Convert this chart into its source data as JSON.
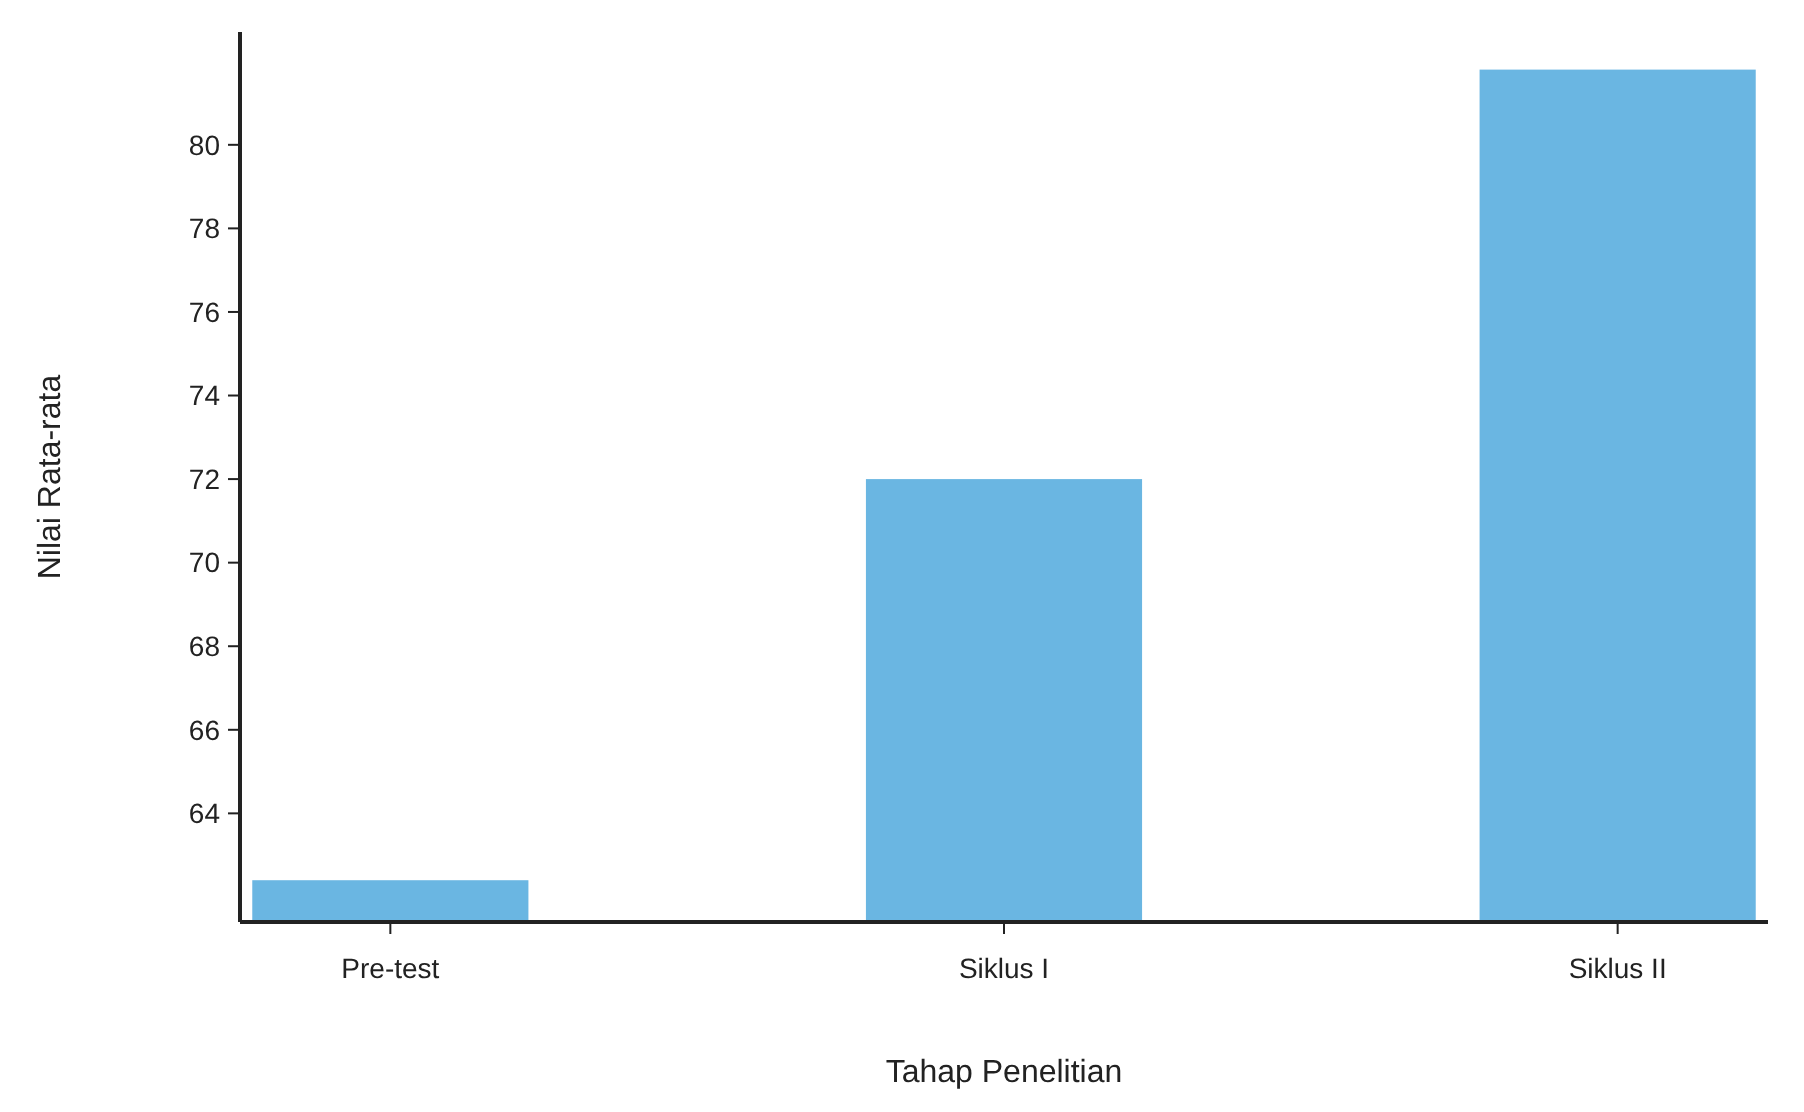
{
  "chart_data": {
    "type": "bar",
    "xlabel": "Tahap Penelitian",
    "ylabel": "Nilai Rata-rata",
    "categories": [
      "Pre-test",
      "Siklus I",
      "Siklus II"
    ],
    "values": [
      62.4,
      72,
      81.8
    ],
    "color": "#6ab6e2",
    "ylim": [
      61.4,
      82.7
    ],
    "yticks": [
      64,
      66,
      68,
      70,
      72,
      74,
      76,
      78,
      80
    ],
    "grid": false
  }
}
